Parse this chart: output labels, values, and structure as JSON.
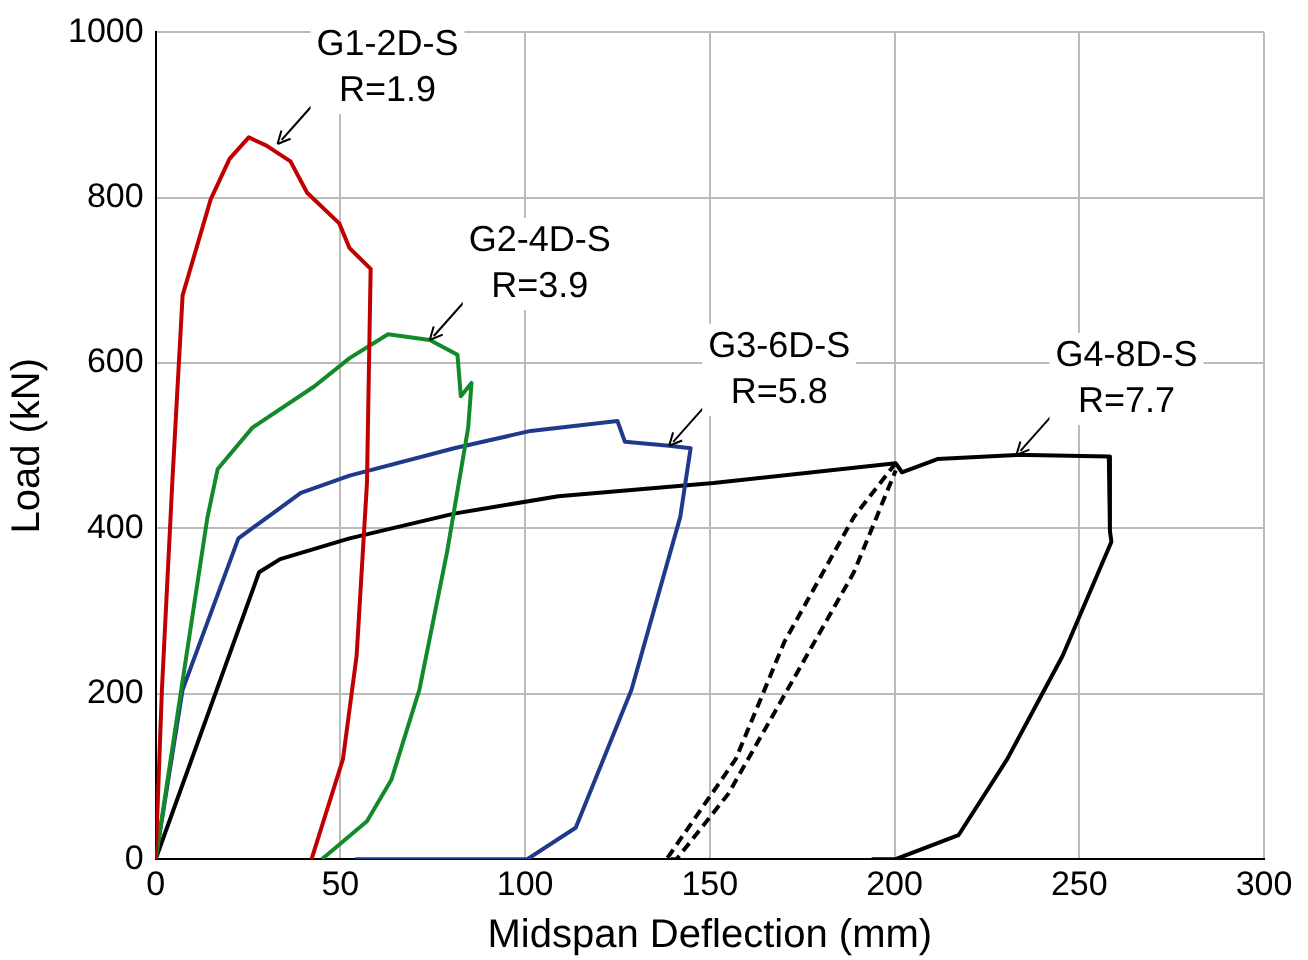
{
  "chart_data": {
    "type": "line",
    "xlabel": "Midspan Deflection (mm)",
    "ylabel": "Load (kN)",
    "xlim": [
      0,
      300
    ],
    "xticks": [
      0,
      50,
      100,
      150,
      200,
      250,
      300
    ],
    "ylim": [
      0,
      1000
    ],
    "yticks": [
      0,
      200,
      400,
      600,
      800,
      1000
    ],
    "grid": true,
    "marker": "none",
    "line_style": "solid",
    "series": [
      {
        "color": "#c00000",
        "x": [
          0,
          1.7,
          4.5,
          7.3,
          14.9,
          20,
          25.2,
          30,
          36.5,
          41,
          49.7,
          52.5,
          58.2,
          57.2,
          54.4,
          50.7,
          42.2
        ],
        "values": [
          0,
          205,
          455,
          682,
          798,
          847,
          873,
          863,
          844,
          806,
          769,
          739,
          714,
          455,
          246,
          121,
          0
        ]
      },
      {
        "color": "#138a2a",
        "x": [
          0,
          5.5,
          14,
          16.8,
          26.2,
          43,
          52.5,
          62.9,
          74.2,
          81.7,
          82.6,
          85.5,
          84.6,
          78.9,
          71.4,
          63.8,
          57.2,
          45
        ],
        "values": [
          0,
          163,
          413,
          472,
          522,
          572,
          606,
          635,
          628,
          610,
          560,
          576,
          522,
          372,
          205,
          96,
          46,
          0
        ]
      },
      {
        "color": "#1f3a8a",
        "x": [
          0,
          7.3,
          22.4,
          39.3,
          52.5,
          80.8,
          101.5,
          125,
          127,
          139,
          144.8,
          142,
          128.8,
          113.7,
          100.6,
          54
        ],
        "values": [
          0,
          205,
          388,
          443,
          464,
          497,
          518,
          530,
          505,
          500,
          497,
          414,
          205,
          38,
          0,
          0
        ]
      },
      {
        "color": "#000000",
        "x": [
          0,
          28,
          33.7,
          52.5,
          80.8,
          109,
          151,
          200.3,
          202,
          211.6,
          233,
          236,
          258,
          258.3,
          258.7,
          245.5,
          230.5,
          217.3,
          200.3,
          193.8
        ],
        "values": [
          0,
          347,
          363,
          388,
          418,
          439,
          455,
          479,
          468,
          484,
          489,
          489,
          487,
          397,
          384,
          246,
          121,
          29,
          0,
          0
        ]
      },
      {
        "color": "#000000",
        "line_style": "dashed",
        "x": [
          200.3,
          189,
          170.2,
          157,
          138.3,
          141,
          155,
          170,
          189,
          200.3
        ],
        "values": [
          479,
          414,
          263,
          121,
          0,
          0,
          79,
          197,
          347,
          470
        ]
      }
    ],
    "annotations": [
      {
        "text": "G1-2D-S\nR=1.9",
        "x": 33,
        "y": 865
      },
      {
        "text": "G2-4D-S\nR=3.9",
        "x": 74.2,
        "y": 628
      },
      {
        "text": "G3-6D-S\nR=5.8",
        "x": 139,
        "y": 500
      },
      {
        "text": "G4-8D-S\nR=7.7",
        "x": 233,
        "y": 489
      }
    ]
  }
}
